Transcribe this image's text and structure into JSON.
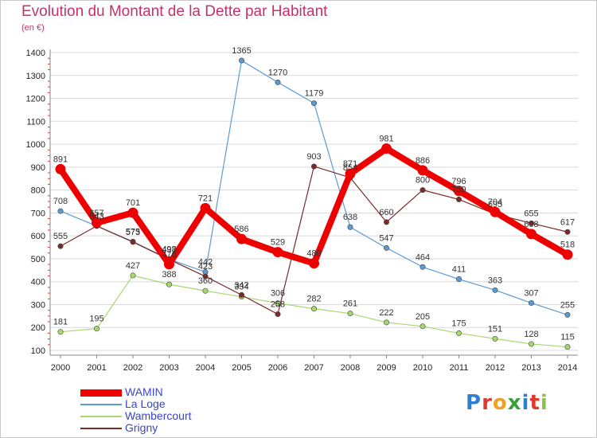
{
  "title": "Evolution du Montant de la Dette par Habitant",
  "subtitle": "(en €)",
  "logo_text": "Proxiti",
  "colors": {
    "title": "#c8306a",
    "legend_text": "#3b45c8",
    "grid": "#d9d9d9"
  },
  "chart_data": {
    "type": "line",
    "title": "Evolution du Montant de la Dette par Habitant",
    "subtitle": "(en €)",
    "xlabel": "",
    "ylabel": "",
    "x": [
      "2000",
      "2001",
      "2002",
      "2003",
      "2004",
      "2005",
      "2006",
      "2007",
      "2008",
      "2009",
      "2010",
      "2011",
      "2012",
      "2013",
      "2014"
    ],
    "ylim": [
      100,
      1400
    ],
    "yticks": [
      100,
      200,
      300,
      400,
      500,
      600,
      700,
      800,
      900,
      1000,
      1100,
      1200,
      1300,
      1400
    ],
    "grid": "horizontal",
    "legend": "bottom-left",
    "series": [
      {
        "name": "WAMIN",
        "color": "#ee0000",
        "values": [
          891,
          657,
          701,
          476,
          721,
          586,
          529,
          480,
          871,
          981,
          886,
          796,
          704,
          608,
          518
        ],
        "labels": [
          "891",
          "657",
          "701",
          "476",
          "721",
          "586",
          "529",
          "480",
          "871",
          "981",
          "886",
          "796",
          "704",
          "608",
          "518"
        ]
      },
      {
        "name": "La Loge",
        "color": "#5b9bd5",
        "values": [
          708,
          643,
          575,
          498,
          442,
          1365,
          1270,
          1179,
          638,
          547,
          464,
          411,
          363,
          307,
          255
        ],
        "labels": [
          "708",
          "643",
          "575",
          "498",
          "442",
          "1365",
          "1270",
          "1179",
          "638",
          "547",
          "464",
          "411",
          "363",
          "307",
          "255"
        ]
      },
      {
        "name": "Wambercourt",
        "color": "#a6d86e",
        "values": [
          181,
          195,
          427,
          388,
          360,
          334,
          306,
          282,
          261,
          222,
          205,
          175,
          151,
          128,
          115
        ],
        "labels": [
          "181",
          "195",
          "427",
          "388",
          "360",
          "334",
          "306",
          "282",
          "261",
          "222",
          "205",
          "175",
          "151",
          "128",
          "115"
        ]
      },
      {
        "name": "Grigny",
        "color": "#7b2a2a",
        "values": [
          555,
          643,
          573,
          497,
          423,
          342,
          258,
          903,
          854,
          660,
          800,
          759,
          695,
          655,
          617
        ],
        "labels": [
          "555",
          "643",
          "573",
          "497",
          "423",
          "342",
          "258",
          "903",
          "854",
          "660",
          "800",
          "759",
          "695",
          "655",
          "617"
        ]
      }
    ]
  }
}
